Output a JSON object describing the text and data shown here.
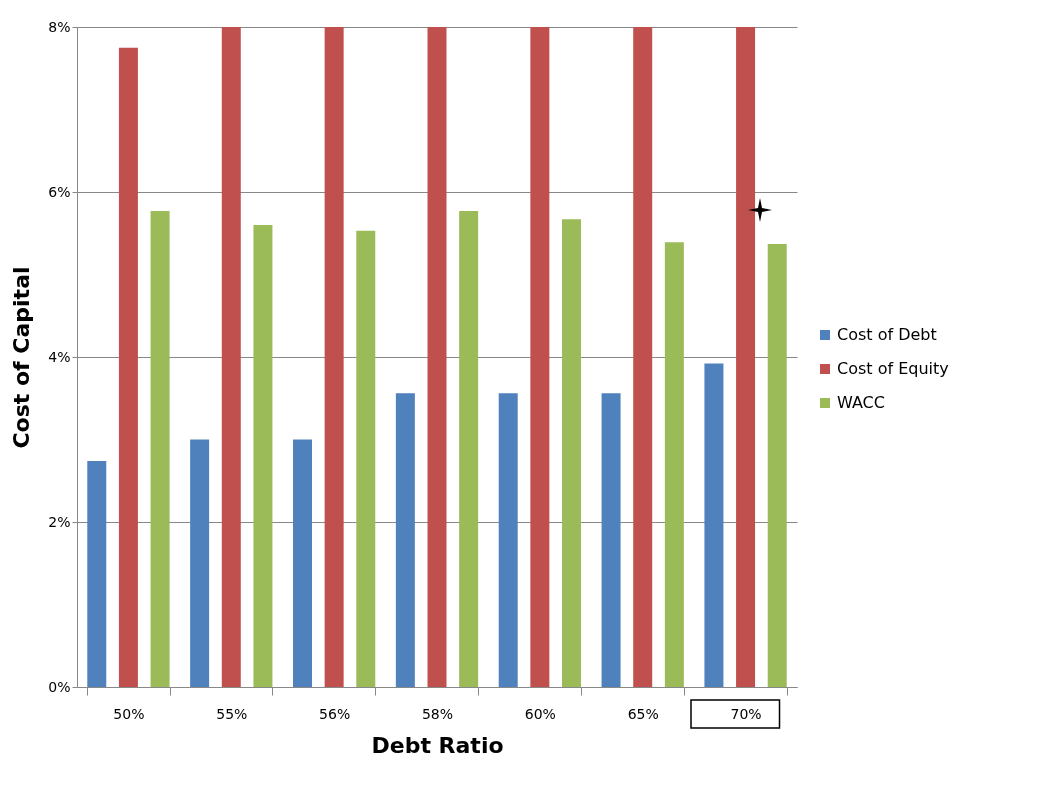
{
  "chart_data": {
    "type": "bar",
    "xlabel": "Debt Ratio",
    "ylabel": "Cost of Capital",
    "categories": [
      "50%",
      "55%",
      "56%",
      "58%",
      "60%",
      "65%",
      "70%"
    ],
    "series": [
      {
        "name": "Cost of Debt",
        "color": "#4f81bd",
        "values": [
          2.74,
          3.0,
          3.0,
          3.56,
          3.56,
          3.56,
          3.92
        ]
      },
      {
        "name": "Cost of Equity",
        "color": "#c0504d",
        "values": [
          7.75,
          8,
          8,
          8,
          8,
          8,
          8
        ]
      },
      {
        "name": "WACC",
        "color": "#9bbb59",
        "values": [
          5.77,
          5.6,
          5.53,
          5.77,
          5.67,
          5.39,
          5.37
        ]
      }
    ],
    "ylim": [
      0,
      8
    ],
    "yticks": [
      {
        "value": 0,
        "label": "0%"
      },
      {
        "value": 2,
        "label": "2%"
      },
      {
        "value": 4,
        "label": "4%"
      },
      {
        "value": 6,
        "label": "6%"
      },
      {
        "value": 8,
        "label": "8%"
      }
    ],
    "grid": "y",
    "legend": "right"
  }
}
